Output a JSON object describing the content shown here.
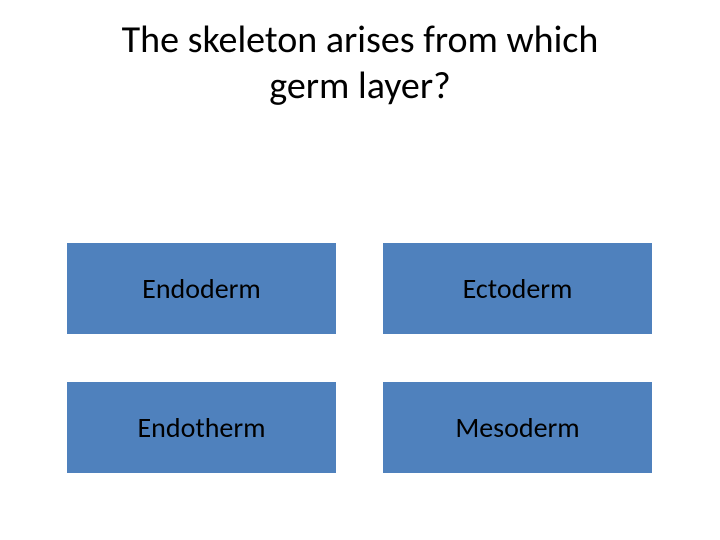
{
  "question": {
    "line1": "The skeleton arises from which",
    "line2": "germ layer?"
  },
  "options": [
    {
      "label": "Endoderm"
    },
    {
      "label": "Ectoderm"
    },
    {
      "label": "Endotherm"
    },
    {
      "label": "Mesoderm"
    }
  ],
  "styling": {
    "button_background": "#4f81bd",
    "button_text_color": "#000000",
    "title_color": "#000000",
    "title_fontsize": 38,
    "option_fontsize": 28,
    "page_background": "#ffffff",
    "button_height": 91,
    "grid_column_gap": 47,
    "grid_row_gap": 48
  }
}
